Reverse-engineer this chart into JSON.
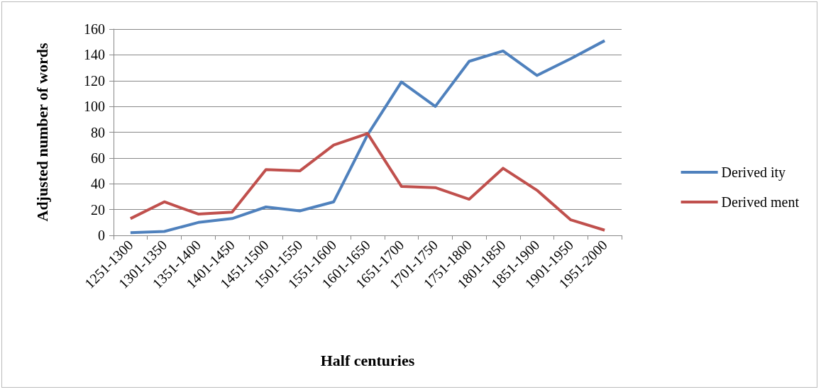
{
  "chart_data": {
    "type": "line",
    "xlabel": "Half centuries",
    "ylabel": "Adjusted number of words",
    "categories": [
      "1251-1300",
      "1301-1350",
      "1351-1400",
      "1401-1450",
      "1451-1500",
      "1501-1550",
      "1551-1600",
      "1601-1650",
      "1651-1700",
      "1701-1750",
      "1751-1800",
      "1801-1850",
      "1851-1900",
      "1901-1950",
      "1951-2000"
    ],
    "series": [
      {
        "name": "Derived ity",
        "color": "#4f81bd",
        "values": [
          2,
          3,
          10,
          13,
          22,
          19,
          26,
          78,
          119,
          100,
          135,
          143,
          124,
          137,
          151
        ]
      },
      {
        "name": "Derived ment",
        "color": "#c0504d",
        "values": [
          13,
          26,
          16.5,
          18,
          51,
          50,
          70,
          79,
          38,
          37,
          28,
          52,
          35,
          12,
          4
        ]
      }
    ],
    "ylim": [
      0,
      160
    ],
    "yticks": [
      0,
      20,
      40,
      60,
      80,
      100,
      120,
      140,
      160
    ],
    "grid": "y",
    "legend": "right",
    "marker": "none",
    "line_style": "solid"
  }
}
